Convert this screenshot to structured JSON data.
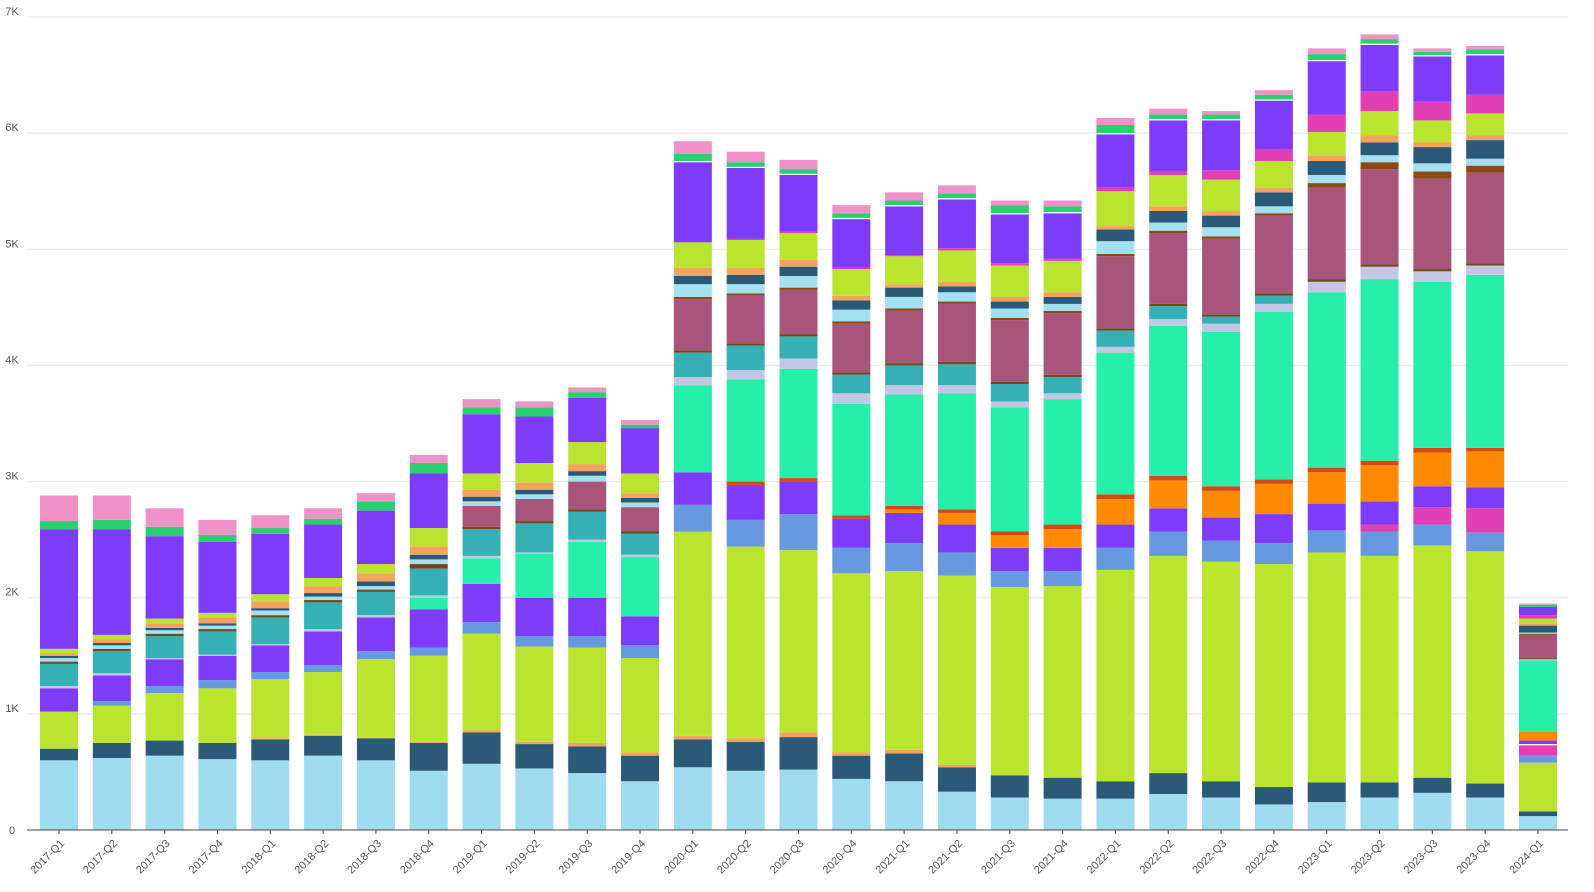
{
  "chart_data": {
    "type": "bar",
    "stacked": true,
    "grid": true,
    "ylim": [
      0,
      7000
    ],
    "y_ticks": [
      {
        "value": 0,
        "label": "0"
      },
      {
        "value": 1000,
        "label": "1K"
      },
      {
        "value": 2000,
        "label": "2K"
      },
      {
        "value": 3000,
        "label": "3K"
      },
      {
        "value": 4000,
        "label": "4K"
      },
      {
        "value": 5000,
        "label": "5K"
      },
      {
        "value": 6000,
        "label": "6K"
      },
      {
        "value": 7000,
        "label": "7K"
      }
    ],
    "categories": [
      "2017-Q1",
      "2017-Q2",
      "2017-Q3",
      "2017-Q4",
      "2018-Q1",
      "2018-Q2",
      "2018-Q3",
      "2018-Q4",
      "2019-Q1",
      "2019-Q2",
      "2019-Q3",
      "2019-Q4",
      "2020-Q1",
      "2020-Q2",
      "2020-Q3",
      "2020-Q4",
      "2021-Q1",
      "2021-Q2",
      "2021-Q3",
      "2021-Q4",
      "2022-Q1",
      "2022-Q2",
      "2022-Q3",
      "2022-Q4",
      "2023-Q1",
      "2023-Q2",
      "2023-Q3",
      "2023-Q4",
      "2024-Q1"
    ],
    "series": [
      {
        "color": "#a0dcef",
        "values": [
          600,
          620,
          640,
          610,
          600,
          640,
          600,
          510,
          570,
          530,
          490,
          420,
          540,
          510,
          520,
          440,
          420,
          330,
          280,
          270,
          270,
          310,
          280,
          220,
          240,
          280,
          320,
          280,
          120
        ]
      },
      {
        "color": "#2b5a78",
        "values": [
          100,
          130,
          130,
          140,
          180,
          170,
          190,
          240,
          270,
          210,
          230,
          220,
          240,
          250,
          280,
          200,
          240,
          210,
          190,
          180,
          150,
          180,
          140,
          150,
          170,
          130,
          130,
          120,
          40
        ]
      },
      {
        "color": "#f4a35e",
        "values": [
          0,
          0,
          0,
          0,
          10,
          10,
          0,
          10,
          20,
          20,
          30,
          30,
          30,
          30,
          40,
          30,
          30,
          20,
          0,
          0,
          0,
          0,
          0,
          0,
          0,
          0,
          0,
          0,
          0
        ]
      },
      {
        "color": "#bbe42f",
        "values": [
          320,
          320,
          410,
          470,
          510,
          540,
          680,
          740,
          830,
          820,
          820,
          810,
          1760,
          1650,
          1570,
          1540,
          1540,
          1630,
          1620,
          1650,
          1820,
          1870,
          1890,
          1920,
          1980,
          1950,
          2000,
          2000,
          420
        ]
      },
      {
        "color": "#6699e0",
        "values": [
          0,
          40,
          60,
          70,
          60,
          60,
          70,
          70,
          100,
          90,
          100,
          110,
          230,
          230,
          310,
          220,
          240,
          200,
          140,
          130,
          190,
          210,
          180,
          180,
          190,
          210,
          180,
          160,
          60
        ]
      },
      {
        "color": "#e23fb5",
        "values": [
          0,
          0,
          0,
          0,
          0,
          0,
          0,
          0,
          0,
          0,
          0,
          0,
          0,
          0,
          0,
          0,
          0,
          0,
          0,
          0,
          0,
          0,
          0,
          0,
          0,
          60,
          150,
          210,
          90
        ]
      },
      {
        "color": "#ffffff",
        "values": [
          0,
          0,
          0,
          0,
          0,
          0,
          0,
          0,
          0,
          0,
          0,
          0,
          0,
          0,
          0,
          0,
          0,
          0,
          0,
          0,
          0,
          0,
          0,
          0,
          0,
          0,
          0,
          0,
          10
        ]
      },
      {
        "color": "#7e3bf9",
        "values": [
          200,
          220,
          230,
          210,
          230,
          290,
          290,
          330,
          330,
          330,
          330,
          250,
          280,
          300,
          280,
          250,
          260,
          240,
          200,
          200,
          200,
          200,
          200,
          250,
          230,
          200,
          180,
          180,
          30
        ]
      },
      {
        "color": "#ff8a00",
        "values": [
          0,
          0,
          0,
          0,
          0,
          0,
          0,
          0,
          0,
          0,
          0,
          0,
          0,
          0,
          0,
          0,
          30,
          100,
          110,
          160,
          220,
          240,
          230,
          260,
          270,
          310,
          290,
          310,
          80
        ]
      },
      {
        "color": "#c8461c",
        "values": [
          0,
          0,
          0,
          0,
          0,
          0,
          0,
          0,
          0,
          0,
          0,
          0,
          0,
          0,
          0,
          0,
          0,
          0,
          0,
          0,
          0,
          0,
          0,
          0,
          0,
          0,
          0,
          0,
          0
        ]
      },
      {
        "color": "#d44a15",
        "values": [
          0,
          0,
          0,
          0,
          0,
          0,
          0,
          0,
          0,
          0,
          0,
          0,
          0,
          30,
          30,
          30,
          30,
          30,
          30,
          40,
          40,
          40,
          40,
          40,
          40,
          40,
          40,
          30,
          0
        ]
      },
      {
        "color": "#26efaa",
        "values": [
          0,
          0,
          0,
          0,
          0,
          0,
          0,
          100,
          220,
          380,
          480,
          510,
          750,
          880,
          940,
          960,
          960,
          1000,
          1070,
          1080,
          1220,
          1290,
          1330,
          1440,
          1510,
          1560,
          1430,
          1490,
          610
        ]
      },
      {
        "color": "#c4c6e6",
        "values": [
          20,
          20,
          10,
          10,
          10,
          20,
          20,
          20,
          20,
          10,
          20,
          20,
          70,
          80,
          90,
          90,
          80,
          70,
          50,
          50,
          50,
          60,
          70,
          70,
          90,
          110,
          90,
          80,
          10
        ]
      },
      {
        "color": "#35b1b5",
        "values": [
          190,
          190,
          190,
          200,
          230,
          230,
          200,
          230,
          230,
          250,
          240,
          180,
          210,
          210,
          190,
          160,
          170,
          180,
          150,
          140,
          140,
          110,
          60,
          70,
          0,
          0,
          0,
          0,
          0
        ]
      },
      {
        "color": "#6e4a1e",
        "values": [
          20,
          20,
          20,
          20,
          20,
          20,
          20,
          40,
          20,
          20,
          20,
          20,
          20,
          20,
          20,
          20,
          20,
          20,
          20,
          20,
          20,
          20,
          20,
          20,
          20,
          20,
          20,
          20,
          10
        ]
      },
      {
        "color": "#a9547a",
        "values": [
          0,
          0,
          0,
          0,
          0,
          0,
          0,
          0,
          180,
          190,
          240,
          210,
          440,
          410,
          380,
          420,
          450,
          500,
          530,
          530,
          620,
          610,
          650,
          670,
          790,
          820,
          780,
          780,
          200
        ]
      },
      {
        "color": "#8b4a13",
        "values": [
          0,
          0,
          0,
          0,
          0,
          0,
          0,
          0,
          0,
          0,
          0,
          0,
          20,
          20,
          20,
          20,
          20,
          20,
          20,
          20,
          20,
          20,
          20,
          20,
          40,
          60,
          60,
          60,
          10
        ]
      },
      {
        "color": "#a3e1f0",
        "values": [
          30,
          30,
          30,
          30,
          40,
          30,
          30,
          40,
          40,
          40,
          50,
          40,
          110,
          80,
          100,
          100,
          100,
          80,
          80,
          60,
          110,
          70,
          80,
          60,
          70,
          60,
          70,
          60,
          10
        ]
      },
      {
        "color": "#2b5a78",
        "values": [
          20,
          20,
          20,
          20,
          20,
          30,
          40,
          40,
          40,
          40,
          40,
          40,
          70,
          80,
          80,
          80,
          80,
          50,
          60,
          60,
          100,
          100,
          100,
          120,
          120,
          110,
          140,
          160,
          60
        ]
      },
      {
        "color": "#f4a35e",
        "values": [
          20,
          30,
          40,
          50,
          60,
          60,
          70,
          70,
          60,
          60,
          60,
          40,
          70,
          60,
          60,
          40,
          30,
          40,
          40,
          40,
          30,
          40,
          40,
          40,
          50,
          60,
          40,
          40,
          20
        ]
      },
      {
        "color": "#bbe42f",
        "values": [
          40,
          40,
          40,
          40,
          60,
          70,
          80,
          160,
          140,
          170,
          190,
          170,
          220,
          240,
          230,
          230,
          240,
          270,
          270,
          270,
          300,
          270,
          270,
          230,
          200,
          210,
          190,
          190,
          40
        ]
      },
      {
        "color": "#e23fb5",
        "values": [
          0,
          0,
          0,
          0,
          0,
          0,
          0,
          0,
          0,
          0,
          0,
          0,
          0,
          10,
          10,
          10,
          10,
          20,
          20,
          20,
          30,
          30,
          80,
          100,
          150,
          170,
          160,
          160,
          30
        ]
      },
      {
        "color": "#7e3bf9",
        "values": [
          1030,
          910,
          710,
          610,
          520,
          460,
          460,
          470,
          510,
          400,
          380,
          390,
          690,
          610,
          490,
          420,
          420,
          420,
          420,
          390,
          460,
          440,
          430,
          420,
          460,
          400,
          390,
          340,
          70
        ]
      },
      {
        "color": "#ffffff",
        "values": [
          0,
          0,
          0,
          0,
          0,
          0,
          0,
          0,
          0,
          0,
          0,
          0,
          10,
          10,
          10,
          10,
          10,
          10,
          10,
          10,
          10,
          10,
          10,
          10,
          10,
          10,
          10,
          10,
          0
        ]
      },
      {
        "color": "#2ad06f",
        "values": [
          70,
          80,
          80,
          60,
          50,
          50,
          80,
          90,
          60,
          80,
          50,
          30,
          60,
          40,
          40,
          40,
          40,
          40,
          70,
          50,
          70,
          40,
          40,
          40,
          50,
          40,
          30,
          40,
          20
        ]
      },
      {
        "color": "#f092c8",
        "values": [
          220,
          210,
          160,
          130,
          110,
          90,
          70,
          70,
          70,
          50,
          40,
          40,
          110,
          90,
          80,
          70,
          70,
          70,
          40,
          50,
          60,
          50,
          30,
          40,
          50,
          40,
          30,
          30,
          10
        ]
      }
    ]
  }
}
